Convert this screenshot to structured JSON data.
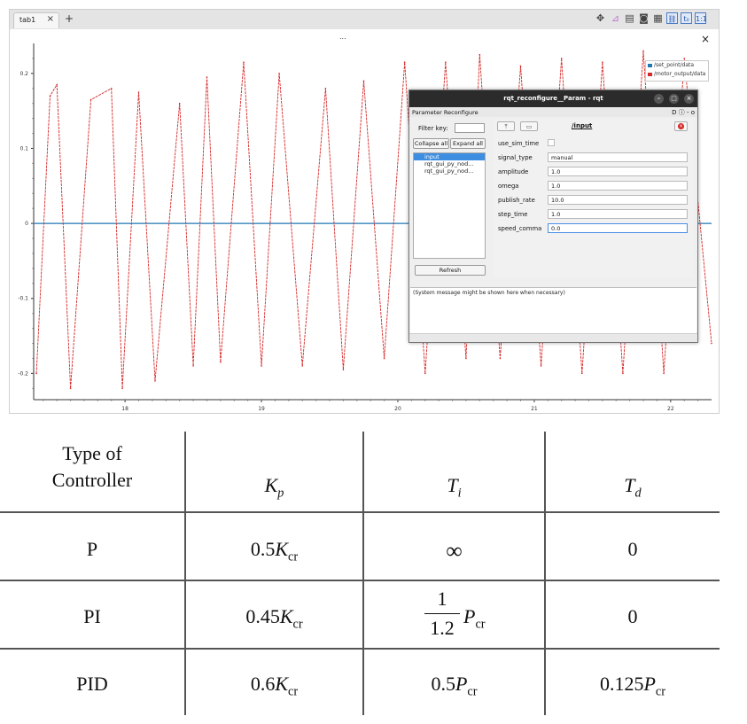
{
  "tabbar": {
    "tab_label": "tab1",
    "tab_close": "×",
    "new_tab": "+"
  },
  "toolbar": {
    "zoom_label": "1:1",
    "to_label": "t₀"
  },
  "plot": {
    "dots": "...",
    "close": "×",
    "y_ticks": [
      "0.2",
      "0.1",
      "0",
      "-0.1",
      "-0.2"
    ],
    "x_ticks": [
      "18",
      "19",
      "20",
      "21",
      "22"
    ],
    "legend": [
      {
        "label": "/set_point/data",
        "color": "#1f77b4"
      },
      {
        "label": "/motor_output/data",
        "color": "#d62728"
      }
    ]
  },
  "chart_data": {
    "type": "line",
    "xlim": [
      17.33,
      22.3
    ],
    "ylim": [
      -0.235,
      0.24
    ],
    "series": [
      {
        "name": "/set_point/data",
        "color": "#1f77b4",
        "x": [
          17.33,
          22.3
        ],
        "y": [
          0,
          0
        ]
      },
      {
        "name": "/motor_output/data",
        "color": "#d62728",
        "x": [
          17.35,
          17.45,
          17.5,
          17.6,
          17.75,
          17.9,
          17.98,
          18.1,
          18.22,
          18.4,
          18.5,
          18.6,
          18.7,
          18.87,
          19.0,
          19.13,
          19.3,
          19.47,
          19.6,
          19.75,
          19.9,
          20.05,
          20.2,
          20.35,
          20.5,
          20.6,
          20.75,
          20.9,
          21.05,
          21.2,
          21.35,
          21.5,
          21.65,
          21.8,
          21.95,
          22.1,
          22.3
        ],
        "y": [
          -0.2,
          0.17,
          0.185,
          -0.22,
          0.165,
          0.18,
          -0.22,
          0.175,
          -0.21,
          0.16,
          -0.19,
          0.195,
          -0.185,
          0.215,
          -0.19,
          0.2,
          -0.19,
          0.18,
          -0.195,
          0.19,
          -0.18,
          0.215,
          -0.2,
          0.215,
          -0.18,
          0.225,
          -0.18,
          0.21,
          -0.19,
          0.22,
          -0.2,
          0.215,
          -0.2,
          0.23,
          -0.2,
          0.22,
          -0.16
        ]
      }
    ]
  },
  "dialog": {
    "title": "rqt_reconfigure__Param - rqt",
    "plugin_name": "Parameter Reconfigure",
    "plugin_right": "D",
    "filter_label": "Filter key:",
    "collapse_all": "Collapse all",
    "expand_all": "Expand all",
    "tree": [
      "input",
      "rqt_gui_py_nod...",
      "rqt_gui_py_nod..."
    ],
    "refresh": "Refresh",
    "node_name": "/input",
    "params": [
      {
        "key": "use_sim_time",
        "value": ""
      },
      {
        "key": "signal_type",
        "value": "manual"
      },
      {
        "key": "amplitude",
        "value": "1.0"
      },
      {
        "key": "omega",
        "value": "1.0"
      },
      {
        "key": "publish_rate",
        "value": "10.0"
      },
      {
        "key": "step_time",
        "value": "1.0"
      },
      {
        "key": "speed_comma",
        "value": "0.0"
      }
    ],
    "system_message": "(System message might be shown here when necessary)"
  },
  "table": {
    "header": {
      "type_line1": "Type of",
      "type_line2": "Controller",
      "kp": "K",
      "kp_sub": "p",
      "ti": "T",
      "ti_sub": "i",
      "td": "T",
      "td_sub": "d"
    },
    "rows": [
      {
        "type": "P",
        "kp_coef": "0.5",
        "kp_var": "K",
        "kp_sub": "cr",
        "ti": "∞",
        "td": "0"
      },
      {
        "type": "PI",
        "kp_coef": "0.45",
        "kp_var": "K",
        "kp_sub": "cr",
        "ti_num": "1",
        "ti_den": "1.2",
        "ti_var": "P",
        "ti_sub": "cr",
        "td": "0"
      },
      {
        "type": "PID",
        "kp_coef": "0.6",
        "kp_var": "K",
        "kp_sub": "cr",
        "ti_coef": "0.5",
        "ti_var": "P",
        "ti_sub": "cr",
        "td_coef": "0.125",
        "td_var": "P",
        "td_sub": "cr"
      }
    ]
  }
}
